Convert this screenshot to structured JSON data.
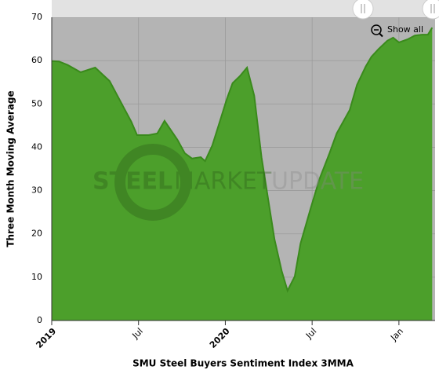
{
  "chart_data": {
    "type": "area",
    "x_label": "SMU Steel Buyers Sentiment Index 3MMA",
    "y_label": "Three Month Moving Average",
    "watermark": [
      "STEEL",
      "MARKET",
      "UPDATE"
    ],
    "reset_button": "Show all",
    "color": "#4c9f2b",
    "line_color": "#3a8a1c",
    "x": [
      0,
      0.5,
      1.1,
      2.0,
      3.0,
      4.0,
      5.0,
      5.5,
      5.9,
      6.7,
      7.3,
      7.8,
      8.7,
      9.2,
      9.7,
      10.3,
      10.6,
      11.1,
      11.7,
      12.1,
      12.5,
      13.0,
      13.5,
      14.0,
      14.5,
      15.4,
      15.9,
      16.3,
      16.8,
      17.2,
      17.9,
      18.5,
      19.2,
      19.7,
      20.6,
      21.1,
      21.7,
      22.1,
      22.6,
      23.2,
      23.6,
      24.0,
      24.6,
      25.1,
      25.6,
      26.0,
      26.3
    ],
    "values": [
      59.9,
      59.8,
      59,
      57.3,
      58.4,
      55.3,
      49,
      45.9,
      42.8,
      42.8,
      43.2,
      46.1,
      41.7,
      38.6,
      37.4,
      37.7,
      36.8,
      40.4,
      46.8,
      51.1,
      54.8,
      56.4,
      58.4,
      51.9,
      37.7,
      18.7,
      11.4,
      6.9,
      10.2,
      17.8,
      25.9,
      32.6,
      38.6,
      43.2,
      48.6,
      54.4,
      58.6,
      60.9,
      62.7,
      64.6,
      65.3,
      64.2,
      64.9,
      65.8,
      66.0,
      66.0,
      67.6
    ],
    "xlim": [
      0,
      26.5
    ],
    "xticks": [
      {
        "value": 0,
        "label": "2019"
      },
      {
        "value": 6,
        "label": "Jul"
      },
      {
        "value": 12,
        "label": "2020"
      },
      {
        "value": 18,
        "label": "Jul"
      },
      {
        "value": 24,
        "label": "Jan"
      }
    ],
    "ylim": [
      0,
      70
    ],
    "yticks": [
      0,
      10,
      20,
      30,
      40,
      50,
      60,
      70
    ],
    "grid": true
  }
}
